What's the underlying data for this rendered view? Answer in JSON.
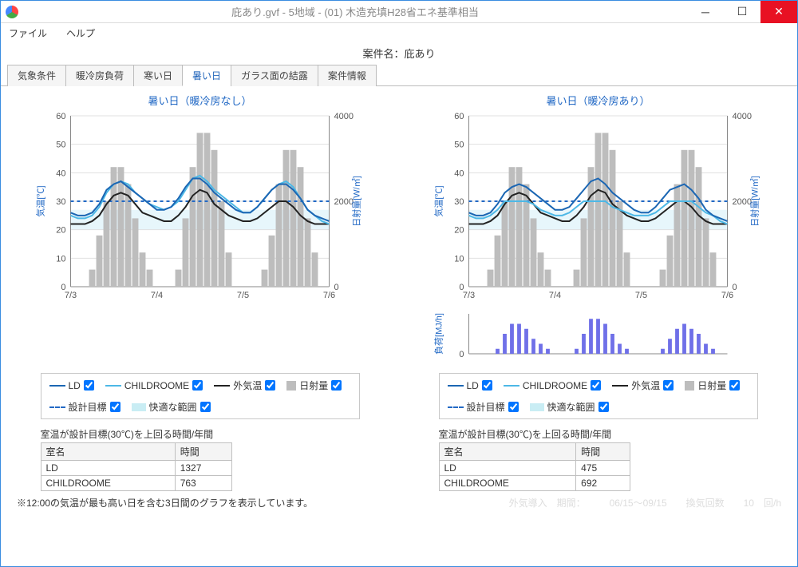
{
  "window": {
    "title": "庇あり.gvf - 5地域 - (01) 木造充填H28省エネ基準相当"
  },
  "menu": {
    "file": "ファイル",
    "help": "ヘルプ"
  },
  "project_label": "案件名：",
  "project_name": "庇あり",
  "tabs": [
    "気象条件",
    "暖冷房負荷",
    "寒い日",
    "暑い日",
    "ガラス面の結露",
    "案件情報"
  ],
  "active_tab_index": 3,
  "axis_labels": {
    "temp": "気温[℃]",
    "solar": "日射量[W/㎡]",
    "load": "負荷[MJ/h]"
  },
  "x_ticks": [
    "7/3",
    "7/4",
    "7/5",
    "7/6"
  ],
  "temp_axis": {
    "min": 0,
    "max": 60,
    "step": 10
  },
  "solar_axis": {
    "min": 0,
    "max": 4000,
    "step": 2000
  },
  "comfort_band": {
    "min": 20,
    "max": 27
  },
  "design_target": 30,
  "colors": {
    "ld": "#1b66b3",
    "child": "#4db8e6",
    "outdoor": "#222222",
    "solar": "#bdbdbd",
    "target": "#2269c5",
    "band": "#c9edf4",
    "load_bar": "#6f70e8",
    "grid": "#e0e0e0",
    "bg": "#ffffff"
  },
  "panels": [
    {
      "title": "暑い日（暖冷房なし）",
      "has_load_chart": false,
      "series": {
        "ld": [
          26,
          25,
          25,
          26,
          29,
          34,
          36,
          37,
          35,
          33,
          31,
          29,
          27,
          27,
          28,
          31,
          35,
          38,
          38,
          36,
          33,
          31,
          29,
          27,
          26,
          26,
          28,
          31,
          34,
          36,
          36,
          34,
          31,
          27,
          25,
          24,
          23
        ],
        "child": [
          25,
          24,
          24,
          25,
          28,
          33,
          36,
          37,
          36,
          33,
          31,
          29,
          28,
          27,
          28,
          30,
          34,
          38,
          39,
          37,
          34,
          32,
          30,
          28,
          26,
          26,
          28,
          31,
          34,
          36,
          37,
          35,
          31,
          27,
          25,
          23,
          22
        ],
        "outdoor": [
          22,
          22,
          22,
          23,
          25,
          29,
          32,
          33,
          32,
          29,
          26,
          25,
          24,
          23,
          23,
          25,
          28,
          32,
          34,
          33,
          29,
          27,
          25,
          24,
          23,
          23,
          24,
          26,
          28,
          30,
          30,
          28,
          25,
          23,
          22,
          22,
          22
        ]
      },
      "solar": [
        0,
        0,
        0,
        1,
        3,
        5,
        7,
        7,
        6,
        4,
        2,
        1,
        0,
        0,
        0,
        1,
        4,
        7,
        9,
        9,
        8,
        5,
        2,
        0,
        0,
        0,
        0,
        1,
        3,
        6,
        8,
        8,
        7,
        4,
        2,
        0,
        0
      ],
      "summary": {
        "caption": "室温が設計目標(30℃)を上回る時間/年間",
        "headers": [
          "室名",
          "時間"
        ],
        "rows": [
          [
            "LD",
            "1327"
          ],
          [
            "CHILDROOME",
            "763"
          ]
        ]
      }
    },
    {
      "title": "暑い日（暖冷房あり）",
      "has_load_chart": true,
      "series": {
        "ld": [
          26,
          25,
          25,
          26,
          29,
          33,
          35,
          36,
          35,
          33,
          31,
          29,
          27,
          27,
          28,
          31,
          34,
          37,
          38,
          36,
          33,
          31,
          29,
          27,
          26,
          26,
          28,
          31,
          34,
          35,
          36,
          34,
          31,
          27,
          25,
          24,
          23
        ],
        "child": [
          25,
          24,
          24,
          25,
          27,
          30,
          30,
          30,
          30,
          29,
          27,
          26,
          25,
          25,
          26,
          28,
          30,
          30,
          30,
          30,
          28,
          27,
          26,
          25,
          25,
          25,
          26,
          28,
          30,
          30,
          30,
          30,
          28,
          26,
          25,
          23,
          22
        ],
        "outdoor": [
          22,
          22,
          22,
          23,
          25,
          29,
          32,
          33,
          32,
          29,
          26,
          25,
          24,
          23,
          23,
          25,
          28,
          32,
          34,
          33,
          29,
          27,
          25,
          24,
          23,
          23,
          24,
          26,
          28,
          30,
          30,
          28,
          25,
          23,
          22,
          22,
          22
        ]
      },
      "solar": [
        0,
        0,
        0,
        1,
        3,
        5,
        7,
        7,
        6,
        4,
        2,
        1,
        0,
        0,
        0,
        1,
        4,
        7,
        9,
        9,
        8,
        5,
        2,
        0,
        0,
        0,
        0,
        1,
        3,
        6,
        8,
        8,
        7,
        4,
        2,
        0,
        0
      ],
      "load": [
        0,
        0,
        0,
        0,
        1,
        4,
        6,
        6,
        5,
        3,
        2,
        1,
        0,
        0,
        0,
        1,
        4,
        7,
        7,
        6,
        4,
        2,
        1,
        0,
        0,
        0,
        0,
        1,
        3,
        5,
        6,
        5,
        4,
        2,
        1,
        0,
        0
      ],
      "summary": {
        "caption": "室温が設計目標(30℃)を上回る時間/年間",
        "headers": [
          "室名",
          "時間"
        ],
        "rows": [
          [
            "LD",
            "475"
          ],
          [
            "CHILDROOME",
            "692"
          ]
        ]
      }
    }
  ],
  "legend": {
    "items": [
      {
        "label": "LD",
        "checkbox": true,
        "swatch": "line",
        "colorKey": "ld"
      },
      {
        "label": "CHILDROOME",
        "checkbox": true,
        "swatch": "line",
        "colorKey": "child"
      },
      {
        "label": "外気温",
        "checkbox": true,
        "swatch": "line",
        "colorKey": "outdoor"
      },
      {
        "label": "日射量",
        "checkbox": false,
        "swatch": "box",
        "colorKey": "solar"
      },
      {
        "label": "設計目標",
        "checkbox": true,
        "swatch": "dash",
        "colorKey": "target"
      },
      {
        "label": "快適な範囲",
        "checkbox": true,
        "swatch": "band",
        "colorKey": "band"
      }
    ]
  },
  "footnote": "※12:00の気温が最も高い日を含む3日間のグラフを表示しています。",
  "faint_status": "外気導入　期間：　　　06/15～09/15　　換気回数　　10　回/h"
}
